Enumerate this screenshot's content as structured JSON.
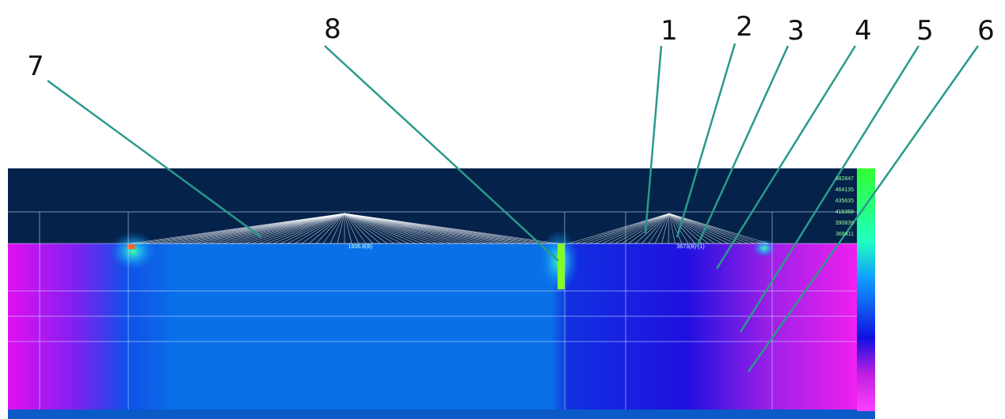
{
  "callouts": [
    {
      "label": "7"
    },
    {
      "label": "8"
    },
    {
      "label": "1"
    },
    {
      "label": "2"
    },
    {
      "label": "3"
    },
    {
      "label": "4"
    },
    {
      "label": "5"
    },
    {
      "label": "6"
    }
  ],
  "annotations": [
    "1606.8(B)",
    "3673(B) (1)"
  ],
  "legend": {
    "labels": [
      "482847",
      "464135",
      "435635",
      "416368",
      "390839",
      "368411"
    ]
  }
}
